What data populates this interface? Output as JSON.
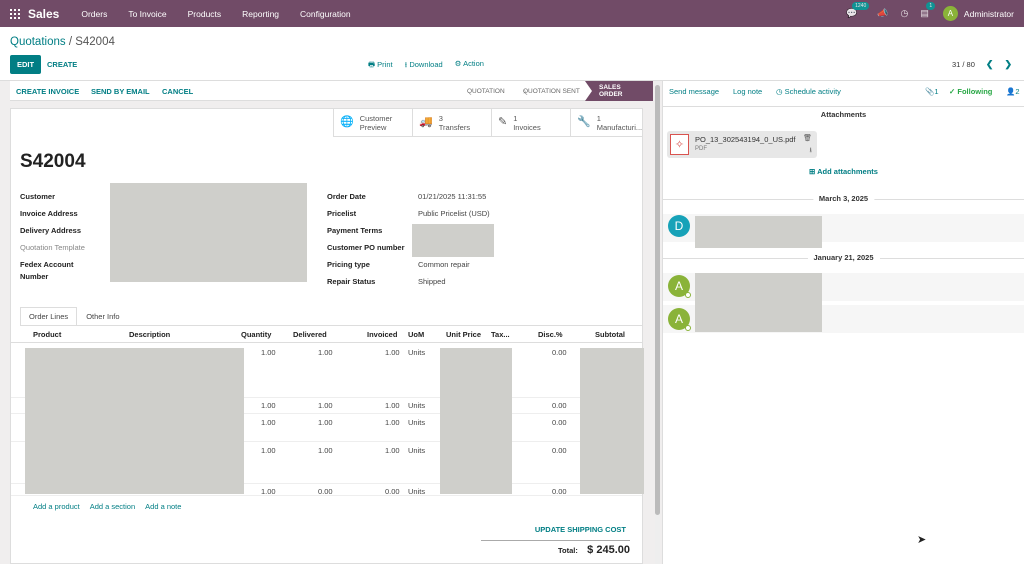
{
  "nav": {
    "app_name": "Sales",
    "menu": [
      "Orders",
      "To Invoice",
      "Products",
      "Reporting",
      "Configuration"
    ],
    "chat_badge": "1240",
    "activity_badge": "1",
    "user_initial": "A",
    "user_name": "Administrator"
  },
  "control": {
    "breadcrumb_parent": "Quotations",
    "breadcrumb_sep": " / ",
    "breadcrumb_current": "S42004",
    "edit_label": "EDIT",
    "create_label": "CREATE",
    "print_label": "Print",
    "download_label": "Download",
    "action_label": "Action",
    "pager": "31 / 80"
  },
  "statusbar": {
    "create_invoice": "CREATE INVOICE",
    "send_by_email": "SEND BY EMAIL",
    "cancel": "CANCEL",
    "stages": [
      "QUOTATION",
      "QUOTATION SENT",
      "SALES ORDER"
    ],
    "active_stage": "SALES ORDER"
  },
  "smart_buttons": [
    {
      "icon": "globe-icon",
      "line1": "Customer",
      "line2": "Preview"
    },
    {
      "icon": "truck-icon",
      "line1": "3",
      "line2": "Transfers"
    },
    {
      "icon": "edit-icon",
      "line1": "1",
      "line2": "Invoices"
    },
    {
      "icon": "wrench-icon",
      "line1": "1",
      "line2": "Manufacturi..."
    }
  ],
  "form": {
    "title": "S42004",
    "left_labels": {
      "customer": "Customer",
      "invoice_address": "Invoice Address",
      "delivery_address": "Delivery Address",
      "quotation_template": "Quotation Template",
      "fedex_line1": "Fedex Account",
      "fedex_line2": "Number"
    },
    "right_fields": {
      "order_date_label": "Order Date",
      "order_date": "01/21/2025 11:31:55",
      "pricelist_label": "Pricelist",
      "pricelist": "Public Pricelist (USD)",
      "payment_terms_label": "Payment Terms",
      "customer_po_label": "Customer PO number",
      "pricing_type_label": "Pricing type",
      "pricing_type": "Common repair",
      "repair_status_label": "Repair Status",
      "repair_status": "Shipped"
    }
  },
  "tabs": [
    "Order Lines",
    "Other Info"
  ],
  "table": {
    "columns": [
      "Product",
      "Description",
      "Quantity",
      "Delivered",
      "Invoiced",
      "UoM",
      "Unit Price",
      "Tax...",
      "Disc.%",
      "Subtotal"
    ],
    "rows": [
      {
        "quantity": "1.00",
        "delivered": "1.00",
        "invoiced": "1.00",
        "uom": "Units",
        "disc": "0.00"
      },
      {
        "quantity": "1.00",
        "delivered": "1.00",
        "invoiced": "1.00",
        "uom": "Units",
        "disc": "0.00"
      },
      {
        "quantity": "1.00",
        "delivered": "1.00",
        "invoiced": "1.00",
        "uom": "Units",
        "disc": "0.00"
      },
      {
        "quantity": "1.00",
        "delivered": "1.00",
        "invoiced": "1.00",
        "uom": "Units",
        "disc": "0.00"
      },
      {
        "quantity": "1.00",
        "delivered": "0.00",
        "invoiced": "0.00",
        "uom": "Units",
        "disc": "0.00"
      }
    ],
    "add_product": "Add a product",
    "add_section": "Add a section",
    "add_note": "Add a note"
  },
  "totals": {
    "update_shipping": "UPDATE SHIPPING COST",
    "total_label": "Total:",
    "total_value": "$ 245.00"
  },
  "chatter": {
    "send_message": "Send message",
    "log_note": "Log note",
    "schedule_activity": "Schedule activity",
    "attachment_count": "1",
    "following": "Following",
    "followers_count": "2",
    "attachments_title": "Attachments",
    "attachment_name": "PO_13_302543194_0_US.pdf",
    "attachment_type": "PDF",
    "add_attachments": "Add attachments",
    "date1": "March 3, 2025",
    "date2": "January 21, 2025",
    "avatar_d": "D",
    "avatar_a": "A"
  },
  "colors": {
    "brand": "#714b67",
    "accent": "#017e84",
    "following": "#28a745",
    "avatar_d": "#17a2b8",
    "avatar_a": "#8ab339"
  }
}
